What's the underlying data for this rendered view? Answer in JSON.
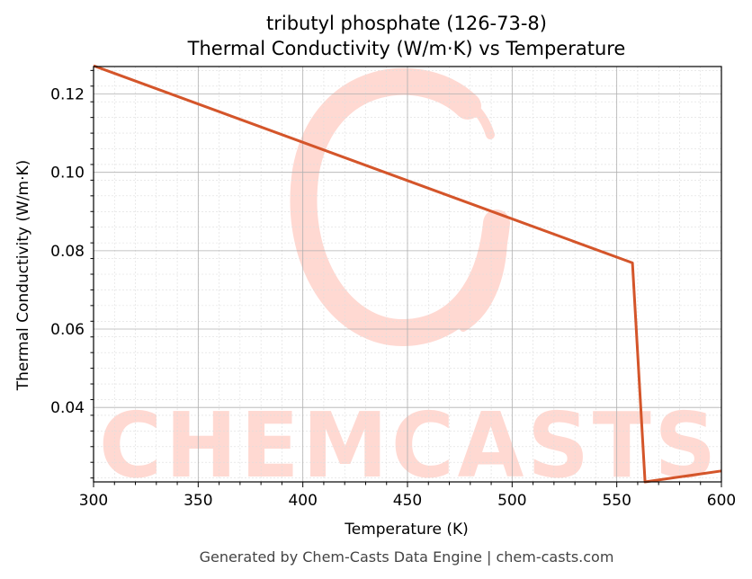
{
  "chart_data": {
    "type": "line",
    "title_line1": "tributyl phosphate (126-73-8)",
    "title_line2": "Thermal Conductivity (W/m·K) vs Temperature",
    "xlabel": "Temperature (K)",
    "ylabel": "Thermal Conductivity (W/m·K)",
    "xlim": [
      300,
      600
    ],
    "ylim": [
      0.021,
      0.127
    ],
    "xticks": [
      300,
      350,
      400,
      450,
      500,
      550,
      600
    ],
    "yticks": [
      0.04,
      0.06,
      0.08,
      0.1,
      0.12
    ],
    "ytick_labels": [
      "0.04",
      "0.06",
      "0.08",
      "0.10",
      "0.12"
    ],
    "grid": true,
    "series": [
      {
        "color": "#d4552a",
        "x": [
          300,
          557.5,
          563.5,
          600
        ],
        "y": [
          0.1272,
          0.0769,
          0.021,
          0.0238
        ]
      }
    ]
  },
  "watermark": {
    "text": "CHEMCASTS",
    "color": "#ffd9d2"
  },
  "footer": "Generated by Chem-Casts Data Engine | chem-casts.com"
}
